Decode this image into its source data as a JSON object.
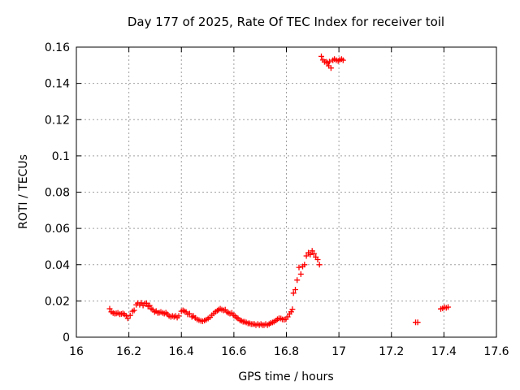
{
  "chart_data": {
    "type": "scatter",
    "title": "Day 177 of 2025, Rate Of TEC Index for receiver toil",
    "xlabel": "GPS time / hours",
    "ylabel": "ROTI / TECUs",
    "xlim": [
      16,
      17.6
    ],
    "ylim": [
      0,
      0.16
    ],
    "xticks": [
      16,
      16.2,
      16.4,
      16.6,
      16.8,
      17,
      17.2,
      17.4,
      17.6
    ],
    "xtick_labels": [
      "16",
      "16.2",
      "16.4",
      "16.6",
      "16.8",
      "17",
      "17.2",
      "17.4",
      "17.6"
    ],
    "yticks": [
      0,
      0.02,
      0.04,
      0.06,
      0.08,
      0.1,
      0.12,
      0.14,
      0.16
    ],
    "ytick_labels": [
      "0",
      "0.02",
      "0.04",
      "0.06",
      "0.08",
      "0.1",
      "0.12",
      "0.14",
      "0.16"
    ],
    "grid": true,
    "legend_position": "none",
    "marker": "plus",
    "colors": {
      "marker": "#ff0000",
      "grid": "#a0a0a0",
      "axis": "#000000",
      "background": "#ffffff"
    },
    "series": [
      {
        "name": "ROTI",
        "points": [
          [
            16.127,
            0.0157
          ],
          [
            16.133,
            0.014
          ],
          [
            16.14,
            0.0133
          ],
          [
            16.146,
            0.013
          ],
          [
            16.152,
            0.0131
          ],
          [
            16.158,
            0.0134
          ],
          [
            16.165,
            0.0127
          ],
          [
            16.171,
            0.0128
          ],
          [
            16.177,
            0.0131
          ],
          [
            16.183,
            0.0126
          ],
          [
            16.19,
            0.0118
          ],
          [
            16.196,
            0.0104
          ],
          [
            16.205,
            0.012
          ],
          [
            16.214,
            0.0143
          ],
          [
            16.22,
            0.0148
          ],
          [
            16.228,
            0.0179
          ],
          [
            16.234,
            0.0188
          ],
          [
            16.241,
            0.0179
          ],
          [
            16.247,
            0.0189
          ],
          [
            16.254,
            0.0175
          ],
          [
            16.26,
            0.0186
          ],
          [
            16.267,
            0.0188
          ],
          [
            16.273,
            0.017
          ],
          [
            16.279,
            0.0175
          ],
          [
            16.285,
            0.0157
          ],
          [
            16.291,
            0.0152
          ],
          [
            16.298,
            0.0139
          ],
          [
            16.304,
            0.0144
          ],
          [
            16.31,
            0.0134
          ],
          [
            16.316,
            0.0135
          ],
          [
            16.322,
            0.0139
          ],
          [
            16.329,
            0.0134
          ],
          [
            16.335,
            0.013
          ],
          [
            16.341,
            0.0135
          ],
          [
            16.347,
            0.0126
          ],
          [
            16.353,
            0.0117
          ],
          [
            16.36,
            0.0112
          ],
          [
            16.366,
            0.0117
          ],
          [
            16.372,
            0.0112
          ],
          [
            16.378,
            0.0117
          ],
          [
            16.384,
            0.0108
          ],
          [
            16.39,
            0.0117
          ],
          [
            16.4,
            0.0143
          ],
          [
            16.406,
            0.0148
          ],
          [
            16.412,
            0.0143
          ],
          [
            16.418,
            0.0139
          ],
          [
            16.424,
            0.0126
          ],
          [
            16.431,
            0.013
          ],
          [
            16.44,
            0.0112
          ],
          [
            16.446,
            0.0117
          ],
          [
            16.453,
            0.0106
          ],
          [
            16.46,
            0.0098
          ],
          [
            16.467,
            0.0094
          ],
          [
            16.474,
            0.009
          ],
          [
            16.481,
            0.0088
          ],
          [
            16.488,
            0.0092
          ],
          [
            16.495,
            0.0097
          ],
          [
            16.502,
            0.0103
          ],
          [
            16.509,
            0.011
          ],
          [
            16.516,
            0.0121
          ],
          [
            16.523,
            0.0131
          ],
          [
            16.53,
            0.014
          ],
          [
            16.537,
            0.0146
          ],
          [
            16.542,
            0.0152
          ],
          [
            16.548,
            0.0157
          ],
          [
            16.554,
            0.0152
          ],
          [
            16.561,
            0.0148
          ],
          [
            16.567,
            0.0152
          ],
          [
            16.573,
            0.0139
          ],
          [
            16.579,
            0.0134
          ],
          [
            16.585,
            0.013
          ],
          [
            16.592,
            0.0134
          ],
          [
            16.598,
            0.0121
          ],
          [
            16.604,
            0.0117
          ],
          [
            16.61,
            0.0108
          ],
          [
            16.616,
            0.0103
          ],
          [
            16.623,
            0.0094
          ],
          [
            16.629,
            0.009
          ],
          [
            16.635,
            0.0085
          ],
          [
            16.641,
            0.0085
          ],
          [
            16.647,
            0.0081
          ],
          [
            16.654,
            0.0076
          ],
          [
            16.66,
            0.0076
          ],
          [
            16.666,
            0.0072
          ],
          [
            16.672,
            0.0072
          ],
          [
            16.678,
            0.0072
          ],
          [
            16.684,
            0.0067
          ],
          [
            16.691,
            0.0072
          ],
          [
            16.697,
            0.0067
          ],
          [
            16.703,
            0.0072
          ],
          [
            16.709,
            0.0067
          ],
          [
            16.715,
            0.0067
          ],
          [
            16.721,
            0.0072
          ],
          [
            16.728,
            0.0067
          ],
          [
            16.734,
            0.0072
          ],
          [
            16.74,
            0.0078
          ],
          [
            16.747,
            0.0081
          ],
          [
            16.753,
            0.0085
          ],
          [
            16.76,
            0.0092
          ],
          [
            16.766,
            0.0099
          ],
          [
            16.772,
            0.0104
          ],
          [
            16.779,
            0.0103
          ],
          [
            16.785,
            0.0098
          ],
          [
            16.792,
            0.0097
          ],
          [
            16.798,
            0.0099
          ],
          [
            16.805,
            0.0112
          ],
          [
            16.812,
            0.0128
          ],
          [
            16.818,
            0.014
          ],
          [
            16.823,
            0.0154
          ],
          [
            16.827,
            0.0243
          ],
          [
            16.834,
            0.0262
          ],
          [
            16.841,
            0.0315
          ],
          [
            16.848,
            0.0385
          ],
          [
            16.855,
            0.0348
          ],
          [
            16.862,
            0.039
          ],
          [
            16.869,
            0.04
          ],
          [
            16.876,
            0.0448
          ],
          [
            16.884,
            0.0466
          ],
          [
            16.891,
            0.0456
          ],
          [
            16.898,
            0.0476
          ],
          [
            16.905,
            0.0461
          ],
          [
            16.912,
            0.0442
          ],
          [
            16.919,
            0.0428
          ],
          [
            16.926,
            0.04
          ],
          [
            16.933,
            0.1549
          ],
          [
            16.939,
            0.1529
          ],
          [
            16.945,
            0.1519
          ],
          [
            16.951,
            0.1519
          ],
          [
            16.957,
            0.1515
          ],
          [
            16.961,
            0.1497
          ],
          [
            16.964,
            0.152
          ],
          [
            16.97,
            0.1485
          ],
          [
            16.977,
            0.1528
          ],
          [
            16.983,
            0.1534
          ],
          [
            16.99,
            0.1528
          ],
          [
            16.997,
            0.1524
          ],
          [
            17.003,
            0.1529
          ],
          [
            17.01,
            0.1534
          ],
          [
            17.016,
            0.1528
          ],
          [
            17.292,
            0.0082
          ],
          [
            17.3,
            0.0082
          ],
          [
            17.388,
            0.0156
          ],
          [
            17.395,
            0.0159
          ],
          [
            17.402,
            0.0165
          ],
          [
            17.409,
            0.0162
          ],
          [
            17.416,
            0.0166
          ]
        ]
      }
    ]
  }
}
